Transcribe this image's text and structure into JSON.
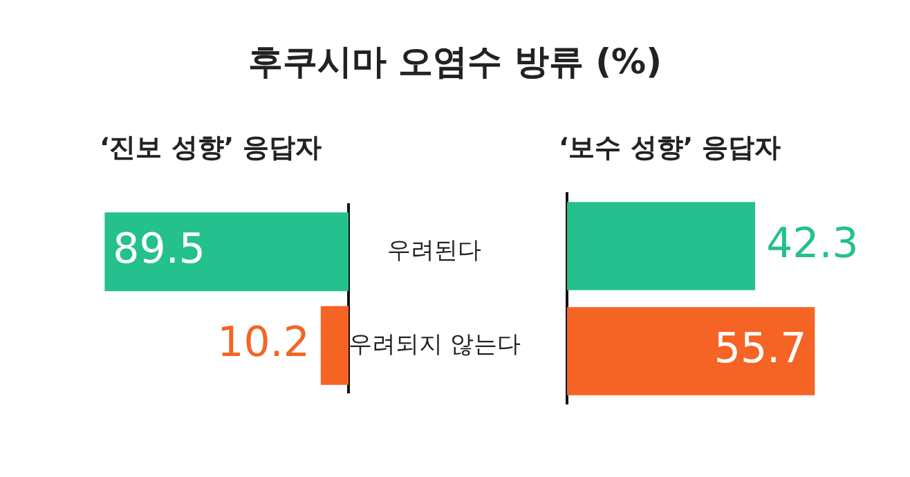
{
  "chart_data": [
    {
      "type": "bar",
      "title": "후쿠시마 오염수 방류 (%)",
      "subtitle": "‘진보 성향’ 응답자",
      "orientation": "horizontal",
      "categories": [
        "우려된다",
        "우려되지 않는다"
      ],
      "values": [
        89.5,
        10.2
      ],
      "colors": [
        "#24c08e",
        "#f56424"
      ],
      "tick_labels": "y",
      "data_labels": true
    },
    {
      "type": "bar",
      "subtitle": "‘보수 성향’ 응답자",
      "orientation": "horizontal",
      "categories": [
        null,
        null
      ],
      "values": [
        42.3,
        55.7
      ],
      "colors": [
        "#24c08e",
        "#f56424"
      ],
      "tick_labels": false,
      "data_labels": true
    }
  ]
}
